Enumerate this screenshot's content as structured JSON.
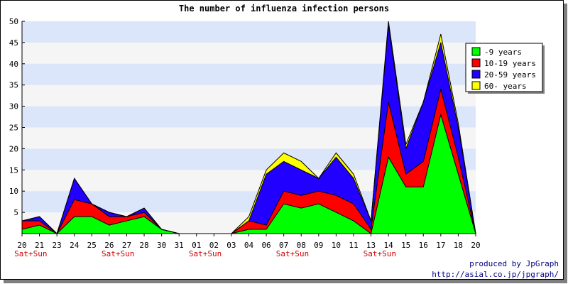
{
  "chart_data": {
    "type": "area",
    "stacked": true,
    "title": "The number of influenza infection persons",
    "ylim": [
      0,
      50
    ],
    "y_ticks": [
      5,
      10,
      15,
      20,
      25,
      30,
      35,
      40,
      45,
      50
    ],
    "x_labels": [
      "20",
      "21",
      "23",
      "24",
      "25",
      "26",
      "27",
      "28",
      "30",
      "31",
      "01",
      "02",
      "03",
      "04",
      "06",
      "07",
      "08",
      "09",
      "10",
      "11",
      "13",
      "14",
      "15",
      "16",
      "17",
      "18",
      "20"
    ],
    "weekend_label": "Sat+Sun",
    "weekend_indices": [
      0,
      5,
      10,
      15,
      20
    ],
    "legend_position": "top-right",
    "series": [
      {
        "name": "-9 years",
        "color": "#00ff00",
        "values": [
          1,
          2,
          0,
          4,
          4,
          2,
          3,
          4,
          1,
          0,
          0,
          0,
          0,
          1,
          1,
          7,
          6,
          7,
          5,
          3,
          0,
          18,
          11,
          11,
          28,
          14,
          0
        ]
      },
      {
        "name": "10-19 years",
        "color": "#ff0000",
        "values": [
          2,
          1,
          0,
          4,
          3,
          2,
          1,
          1,
          0,
          0,
          0,
          0,
          0,
          2,
          1,
          3,
          3,
          3,
          4,
          4,
          1,
          13,
          3,
          6,
          6,
          4,
          0
        ]
      },
      {
        "name": "20-59 years",
        "color": "#2200ff",
        "values": [
          0,
          1,
          0,
          5,
          0,
          1,
          0,
          1,
          0,
          0,
          0,
          0,
          0,
          0,
          12,
          7,
          6,
          3,
          9,
          6,
          2,
          18,
          6,
          14,
          11,
          7,
          0
        ]
      },
      {
        "name": "60- years",
        "color": "#ffff00",
        "values": [
          0,
          0,
          0,
          0,
          0,
          0,
          0,
          0,
          0,
          0,
          0,
          0,
          0,
          1,
          1,
          2,
          2,
          0,
          1,
          1,
          0,
          1,
          1,
          0,
          2,
          1,
          0
        ]
      }
    ]
  },
  "footer": {
    "credit": "produced by JpGraph",
    "url": "http://asial.co.jp/jpgraph/"
  }
}
